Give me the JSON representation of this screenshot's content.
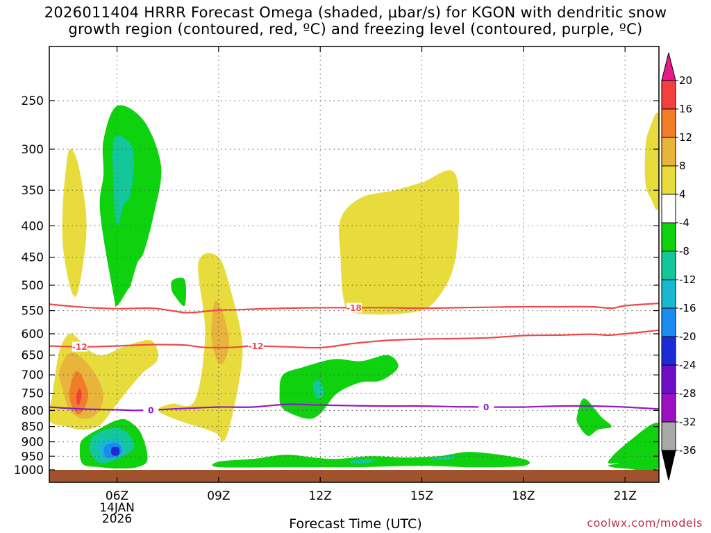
{
  "title_line1": "2026011404 HRRR Forecast Omega (shaded, μbar/s) for KGON with dendritic snow",
  "title_line2": "growth region (contoured, red, ºC) and freezing level (contoured, purple, ºC)",
  "xlabel": "Forecast Time (UTC)",
  "credit": "coolwx.com/models",
  "chart_data": {
    "type": "heatmap",
    "title": "2026011404 HRRR Forecast Omega (shaded, μbar/s) for KGON with dendritic snow growth region (contoured, red, ºC) and freezing level (contoured, purple, ºC)",
    "xlabel": "Forecast Time (UTC)",
    "ylabel": "",
    "x_ticks": [
      {
        "hour": 6,
        "label": "06Z",
        "sub1": "14JAN",
        "sub2": "2026"
      },
      {
        "hour": 9,
        "label": "09Z"
      },
      {
        "hour": 12,
        "label": "12Z"
      },
      {
        "hour": 15,
        "label": "15Z"
      },
      {
        "hour": 18,
        "label": "18Z"
      },
      {
        "hour": 21,
        "label": "21Z"
      }
    ],
    "xlim": [
      4,
      22
    ],
    "y_ticks": [
      250,
      300,
      350,
      400,
      450,
      500,
      550,
      600,
      650,
      700,
      750,
      800,
      850,
      900,
      950,
      1000
    ],
    "ylim": [
      200,
      1000
    ],
    "y_scale": "log",
    "grid": true,
    "colorbar": {
      "labels": [
        "20",
        "16",
        "12",
        "8",
        "4",
        "-4",
        "-8",
        "-12",
        "-16",
        "-20",
        "-24",
        "-28",
        "-32",
        "-36"
      ],
      "colors": [
        "#e8198a",
        "#f43f3f",
        "#f07d28",
        "#e8b43c",
        "#e8dc3c",
        "#ffffff",
        "#0ed20e",
        "#13c79a",
        "#18b8d0",
        "#1a8cf0",
        "#1b2cd6",
        "#6f0ec6",
        "#9c0fc2",
        "#a9a9a9",
        "#000000"
      ]
    },
    "shaded_regions": [
      {
        "level": 4,
        "color": "#e8dc3c",
        "x": [
          4.6,
          4.8,
          5.0,
          5.1,
          5.0,
          4.8,
          4.6,
          4.4,
          4.4,
          4.5
        ],
        "y": [
          300,
          310,
          350,
          400,
          460,
          520,
          500,
          430,
          370,
          320
        ]
      },
      {
        "level": 4,
        "color": "#e8dc3c",
        "x": [
          4.0,
          4.5,
          5.0,
          5.5,
          6.0,
          6.7,
          7.2,
          7.0,
          6.2,
          5.6,
          5.2,
          4.9,
          4.6,
          4.3,
          4.1
        ],
        "y": [
          830,
          850,
          860,
          845,
          780,
          700,
          660,
          615,
          630,
          650,
          640,
          615,
          600,
          640,
          750
        ]
      },
      {
        "level": 4,
        "color": "#e8dc3c",
        "x": [
          8.4,
          9.0,
          9.4,
          9.7,
          9.6,
          9.3,
          9.1,
          8.9,
          7.8,
          7.2,
          7.6,
          8.3,
          8.6
        ],
        "y": [
          460,
          450,
          520,
          620,
          720,
          860,
          900,
          870,
          830,
          800,
          780,
          770,
          600
        ]
      },
      {
        "level": 4,
        "color": "#e8dc3c",
        "x": [
          12.6,
          13.2,
          14.2,
          15.0,
          16.0,
          16.0,
          15.4,
          14.6,
          13.0,
          12.7,
          12.6
        ],
        "y": [
          390,
          360,
          350,
          340,
          330,
          450,
          530,
          555,
          555,
          530,
          450
        ]
      },
      {
        "level": 4,
        "color": "#e8dc3c",
        "x": [
          21.7,
          22.0,
          22.0,
          21.75,
          21.6,
          21.6
        ],
        "y": [
          280,
          265,
          370,
          360,
          340,
          300
        ]
      },
      {
        "level": 8,
        "color": "#e8b43c",
        "x": [
          4.6,
          5.0,
          5.4,
          5.6,
          5.4,
          5.0,
          4.6,
          4.4,
          4.3
        ],
        "y": [
          645,
          660,
          705,
          760,
          810,
          825,
          800,
          740,
          690
        ]
      },
      {
        "level": 8,
        "color": "#e8b43c",
        "x": [
          8.9,
          9.1,
          9.3,
          9.2,
          9.0,
          8.8,
          8.8
        ],
        "y": [
          530,
          550,
          610,
          660,
          670,
          620,
          570
        ]
      },
      {
        "level": 12,
        "color": "#f07d28",
        "x": [
          4.8,
          5.0,
          5.15,
          5.0,
          4.8,
          4.6,
          4.65
        ],
        "y": [
          690,
          710,
          755,
          800,
          810,
          765,
          720
        ]
      },
      {
        "level": 16,
        "color": "#f43f3f",
        "x": [
          4.9,
          4.95,
          4.85,
          4.8
        ],
        "y": [
          735,
          760,
          785,
          760
        ]
      },
      {
        "level": -4,
        "color": "#0ed20e",
        "x": [
          5.6,
          6.0,
          6.8,
          7.3,
          7.1,
          6.8,
          6.6,
          6.4,
          6.3,
          6.0,
          5.9,
          5.5,
          5.6
        ],
        "y": [
          290,
          255,
          270,
          320,
          380,
          440,
          460,
          500,
          510,
          540,
          520,
          380,
          330
        ]
      },
      {
        "level": -4,
        "color": "#0ed20e",
        "x": [
          7.65,
          8.0,
          8.0,
          7.7,
          7.6
        ],
        "y": [
          490,
          490,
          540,
          520,
          505
        ]
      },
      {
        "level": -4,
        "color": "#0ed20e",
        "x": [
          5.0,
          5.6,
          6.0,
          6.3,
          6.7,
          6.9,
          6.6,
          6.0,
          5.5,
          5.0,
          4.9
        ],
        "y": [
          890,
          850,
          830,
          830,
          870,
          960,
          990,
          995,
          990,
          980,
          930
        ]
      },
      {
        "level": -4,
        "color": "#0ed20e",
        "x": [
          10.9,
          11.5,
          12.4,
          13.2,
          14.0,
          14.3,
          13.8,
          13.2,
          12.5,
          12.0,
          11.6,
          10.9,
          10.8
        ],
        "y": [
          700,
          680,
          660,
          665,
          650,
          680,
          715,
          720,
          750,
          810,
          825,
          795,
          750
        ]
      },
      {
        "level": -4,
        "color": "#0ed20e",
        "x": [
          9.0,
          10.0,
          11.0,
          11.8,
          12.5,
          13.5,
          14.5,
          15.5,
          16.5,
          18.0,
          18.0,
          16.5,
          15.0,
          13.0,
          11.0,
          9.0
        ],
        "y": [
          970,
          960,
          945,
          955,
          960,
          950,
          955,
          950,
          935,
          960,
          985,
          990,
          985,
          990,
          990,
          990
        ]
      },
      {
        "level": -4,
        "color": "#0ed20e",
        "x": [
          19.6,
          19.8,
          20.3,
          20.6,
          20.2,
          19.9,
          19.6
        ],
        "y": [
          810,
          765,
          820,
          850,
          860,
          880,
          840
        ]
      },
      {
        "level": -4,
        "color": "#0ed20e",
        "x": [
          20.5,
          21.1,
          22.0,
          22.0,
          21.0,
          20.5,
          20.8
        ],
        "y": [
          970,
          900,
          840,
          990,
          995,
          985,
          975
        ]
      },
      {
        "level": -8,
        "color": "#13c79a",
        "x": [
          5.9,
          6.3,
          6.5,
          6.4,
          6.2,
          6.0,
          5.9
        ],
        "y": [
          290,
          290,
          310,
          355,
          370,
          400,
          350
        ]
      },
      {
        "level": -8,
        "color": "#13c79a",
        "x": [
          11.8,
          12.0,
          12.1,
          11.9,
          11.8
        ],
        "y": [
          720,
          715,
          750,
          765,
          740
        ]
      },
      {
        "level": -8,
        "color": "#13c79a",
        "x": [
          5.3,
          5.9,
          6.3,
          6.5,
          6.0,
          5.5,
          5.2
        ],
        "y": [
          880,
          855,
          870,
          920,
          960,
          975,
          930
        ]
      },
      {
        "level": -8,
        "color": "#13c79a",
        "x": [
          13.0,
          13.6,
          13.4,
          12.9
        ],
        "y": [
          965,
          960,
          975,
          975
        ]
      },
      {
        "level": -8,
        "color": "#13c79a",
        "x": [
          15.4,
          16.0,
          15.8,
          15.3
        ],
        "y": [
          955,
          950,
          962,
          962
        ]
      },
      {
        "level": -12,
        "color": "#18b8d0",
        "x": [
          5.5,
          6.0,
          6.2,
          6.05,
          5.6,
          5.45
        ],
        "y": [
          900,
          890,
          925,
          955,
          960,
          930
        ]
      },
      {
        "level": -16,
        "color": "#1a8cf0",
        "x": [
          5.7,
          6.0,
          6.15,
          6.0,
          5.7,
          5.6
        ],
        "y": [
          910,
          905,
          930,
          950,
          955,
          930
        ]
      },
      {
        "level": -20,
        "color": "#1b2cd6",
        "x": [
          5.85,
          6.05,
          6.05,
          5.85
        ],
        "y": [
          920,
          920,
          945,
          945
        ]
      }
    ],
    "contours": [
      {
        "name": "-18",
        "color": "#f04848",
        "label_at": 13.0,
        "x": [
          4,
          5,
          6,
          7,
          7.6,
          8,
          8.4,
          9.0,
          9.6,
          10,
          11,
          12,
          13,
          14,
          15,
          16,
          17,
          18,
          19,
          20,
          20.6,
          21,
          22
        ],
        "y": [
          537,
          543,
          546,
          545,
          550,
          554,
          553,
          549,
          548,
          547,
          545,
          544,
          544,
          544,
          545,
          544,
          543,
          542,
          542,
          542,
          545,
          540,
          535
        ]
      },
      {
        "name": "-12",
        "color": "#f04848",
        "label_at": 4.9,
        "label2_at": 10.1,
        "x": [
          4,
          5,
          6,
          7,
          8,
          8.5,
          9.0,
          9.5,
          10,
          11,
          12,
          13,
          14,
          15,
          16,
          17,
          18,
          19,
          20,
          20.5,
          21,
          22
        ],
        "y": [
          628,
          630,
          628,
          625,
          626,
          631,
          632,
          631,
          628,
          630,
          632,
          622,
          615,
          612,
          611,
          609,
          604,
          603,
          601,
          603,
          600,
          592
        ]
      },
      {
        "name": "0",
        "color": "#9019c8",
        "label_at": 7.0,
        "label2_at": 16.9,
        "x": [
          4,
          5,
          6,
          6.5,
          7,
          8,
          9,
          10,
          11,
          12,
          13,
          14,
          15,
          16,
          17,
          18,
          19,
          20,
          21,
          22
        ],
        "y": [
          790,
          796,
          798,
          800,
          799,
          794,
          790,
          790,
          782,
          784,
          786,
          787,
          787,
          789,
          790,
          790,
          787,
          787,
          790,
          796
        ]
      }
    ]
  }
}
